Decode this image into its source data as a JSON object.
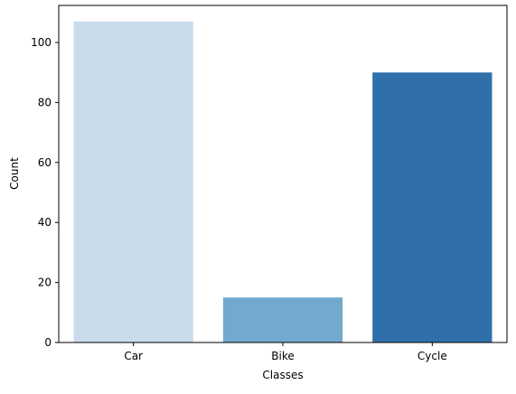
{
  "chart_data": {
    "type": "bar",
    "categories": [
      "Car",
      "Bike",
      "Cycle"
    ],
    "values": [
      107,
      15,
      90
    ],
    "colors": [
      "#cadbec",
      "#74a9cf",
      "#3070aa"
    ],
    "xlabel": "Classes",
    "ylabel": "Count",
    "ylim": [
      0,
      112.35
    ],
    "yticks": [
      0,
      20,
      40,
      60,
      80,
      100
    ],
    "grid": false,
    "legend": null
  }
}
